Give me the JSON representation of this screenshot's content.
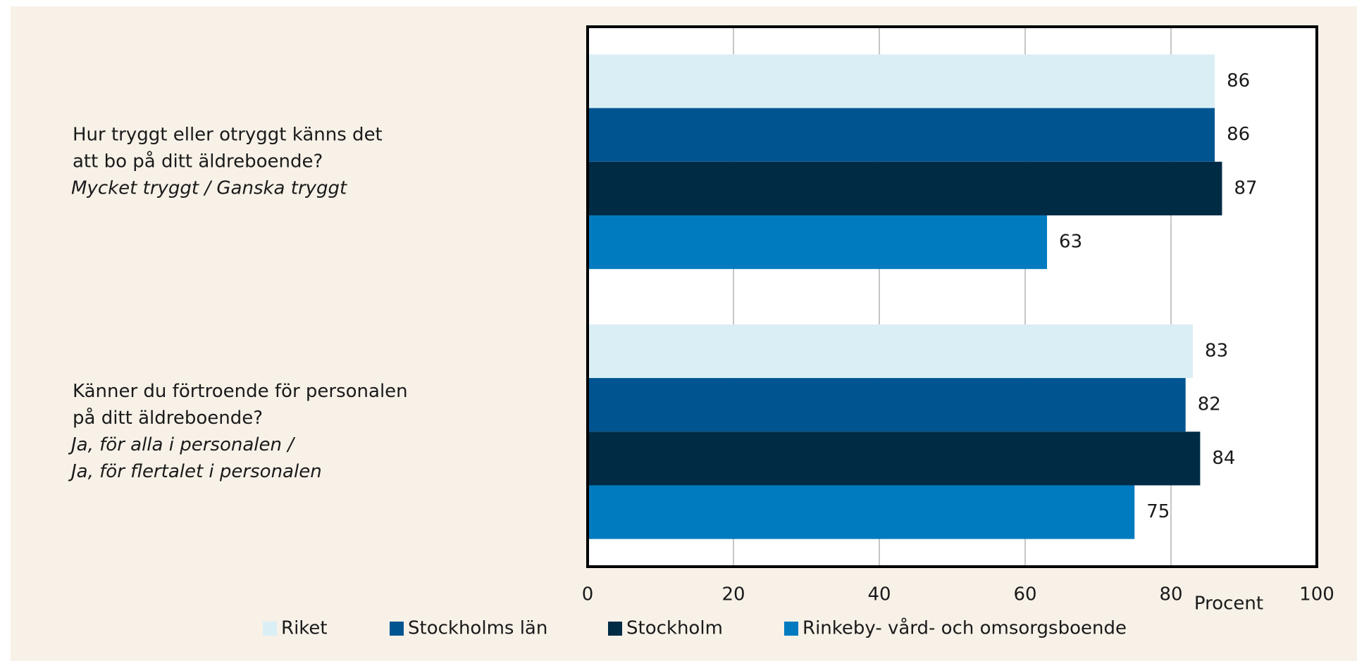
{
  "chart_data": {
    "type": "barh",
    "categories": [
      [
        "Hur tryggt eller otryggt känns det",
        "att bo på ditt äldreboende?"
      ],
      [
        "Känner du förtroende för personalen",
        "på ditt äldreboende?"
      ]
    ],
    "category_notes": [
      [
        "Mycket tryggt / Ganska tryggt"
      ],
      [
        "Ja, för alla i personalen /",
        "Ja, för flertalet i personalen"
      ]
    ],
    "series": [
      {
        "name": "Riket",
        "color": "#daeef5",
        "values": [
          86,
          83
        ]
      },
      {
        "name": "Stockholms län",
        "color": "#005591",
        "values": [
          86,
          82
        ]
      },
      {
        "name": "Stockholm",
        "color": "#002b45",
        "values": [
          87,
          84
        ]
      },
      {
        "name": "Rinkeby- vård- och omsorgsboende",
        "color": "#007bc0",
        "values": [
          63,
          75
        ]
      }
    ],
    "xlabel": "Procent",
    "xlim": [
      0,
      100
    ],
    "xticks": [
      0,
      20,
      40,
      60,
      80,
      100
    ],
    "grid": true,
    "legend": "bottom"
  }
}
